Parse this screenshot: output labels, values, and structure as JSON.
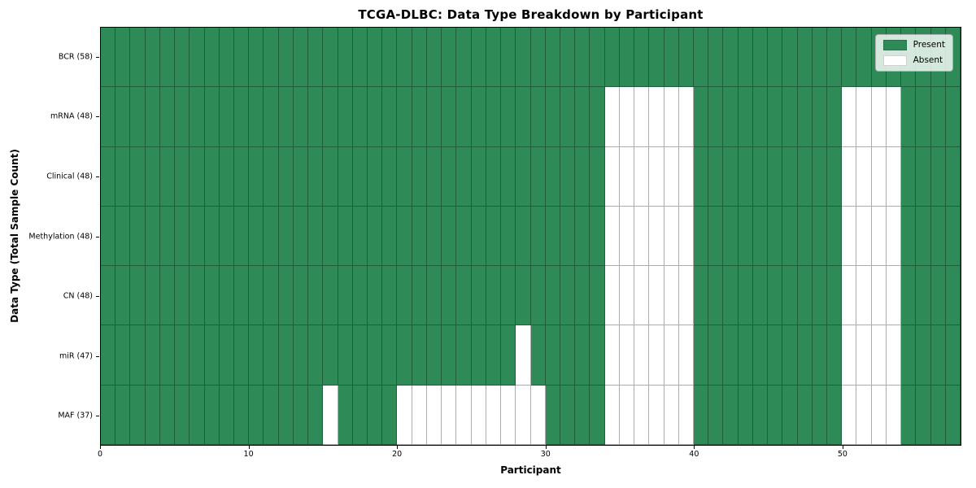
{
  "chart_data": {
    "type": "heatmap",
    "title": "TCGA-DLBC: Data Type Breakdown by Participant",
    "xlabel": "Participant",
    "ylabel": "Data Type (Total Sample Count)",
    "x_ticks": [
      0,
      10,
      20,
      30,
      40,
      50
    ],
    "x_range": [
      0,
      58
    ],
    "n_participants": 58,
    "grid": true,
    "legend_position": "upper right",
    "legend": [
      {
        "label": "Present",
        "color": "#2e8b57"
      },
      {
        "label": "Absent",
        "color": "#ffffff"
      }
    ],
    "colors": {
      "present": "#2e8b57",
      "absent": "#ffffff",
      "grid_line": "rgba(0,0,0,0.32)",
      "frame": "#000000",
      "legend_background": "rgba(255,255,255,0.8)"
    },
    "rows": [
      {
        "label": "BCR (58)",
        "data_type": "BCR",
        "count": 58,
        "absent_participants": []
      },
      {
        "label": "mRNA (48)",
        "data_type": "mRNA",
        "count": 48,
        "absent_participants": [
          34,
          35,
          36,
          37,
          38,
          39,
          50,
          51,
          52,
          53
        ]
      },
      {
        "label": "Clinical (48)",
        "data_type": "Clinical",
        "count": 48,
        "absent_participants": [
          34,
          35,
          36,
          37,
          38,
          39,
          50,
          51,
          52,
          53
        ]
      },
      {
        "label": "Methylation (48)",
        "data_type": "Methylation",
        "count": 48,
        "absent_participants": [
          34,
          35,
          36,
          37,
          38,
          39,
          50,
          51,
          52,
          53
        ]
      },
      {
        "label": "CN (48)",
        "data_type": "CN",
        "count": 48,
        "absent_participants": [
          34,
          35,
          36,
          37,
          38,
          39,
          50,
          51,
          52,
          53
        ]
      },
      {
        "label": "miR (47)",
        "data_type": "miR",
        "count": 47,
        "absent_participants": [
          28,
          34,
          35,
          36,
          37,
          38,
          39,
          50,
          51,
          52,
          53
        ]
      },
      {
        "label": "MAF (37)",
        "data_type": "MAF",
        "count": 37,
        "absent_participants": [
          15,
          20,
          21,
          22,
          23,
          24,
          25,
          26,
          27,
          28,
          29,
          34,
          35,
          36,
          37,
          38,
          39,
          50,
          51,
          52,
          53
        ]
      }
    ]
  }
}
